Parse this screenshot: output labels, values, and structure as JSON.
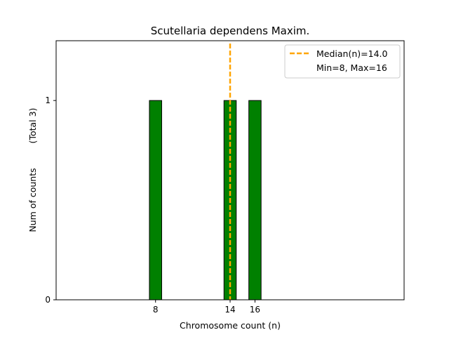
{
  "chart_data": {
    "type": "bar",
    "title": "Scutellaria dependens Maxim.",
    "xlabel": "Chromosome count (n)",
    "ylabel": "Num of counts",
    "ylabel_total": "(Total 3)",
    "categories": [
      "8",
      "14",
      "16"
    ],
    "x": [
      8,
      14,
      16
    ],
    "values": [
      1,
      1,
      1
    ],
    "xlim": [
      0,
      28
    ],
    "ylim": [
      0,
      1.3
    ],
    "xticks": [
      8,
      14,
      16
    ],
    "yticks": [
      0,
      1
    ],
    "grid": false,
    "legend_position": "top-right",
    "median": 14.0,
    "min": 8,
    "max": 16,
    "legend": [
      {
        "label": "Median(n)=14.0",
        "style": "dashed-line"
      },
      {
        "label": "Min=8, Max=16",
        "style": "none"
      }
    ],
    "colors": {
      "bar": "#008000",
      "bar_edge": "#000000",
      "median_line": "#FFA500"
    }
  }
}
